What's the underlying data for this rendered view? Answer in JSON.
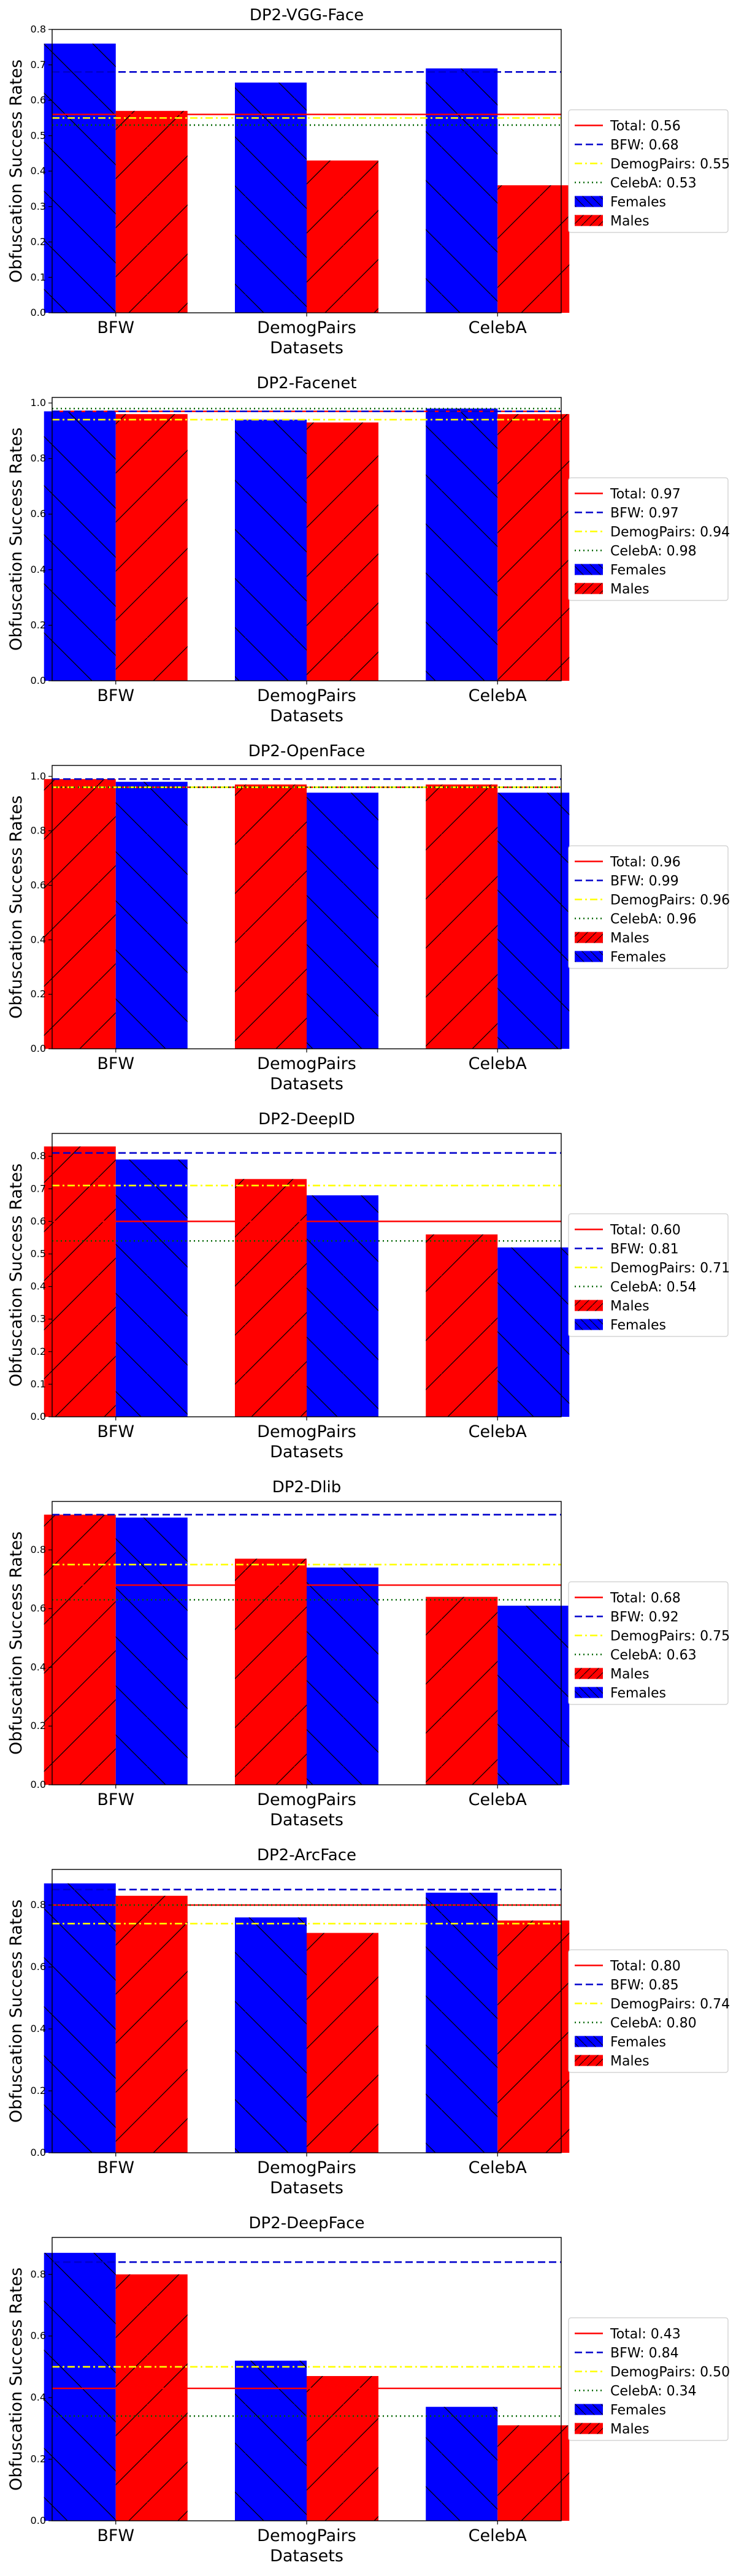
{
  "colors": {
    "Females": "#0000ff",
    "Males": "#ff0000",
    "total": "#ff0000",
    "bfw": "#0000cc",
    "demog": "#ffff00",
    "celeba": "#006400"
  },
  "chart_data": [
    {
      "type": "bar",
      "title": "DP2-VGG-Face",
      "xlabel": "Datasets",
      "ylabel": "Obfuscation Success Rates",
      "categories": [
        "BFW",
        "DemogPairs",
        "CelebA"
      ],
      "yticks": [
        "0.0",
        "0.1",
        "0.2",
        "0.3",
        "0.4",
        "0.5",
        "0.6",
        "0.7",
        "0.8"
      ],
      "ylim": [
        0,
        0.8
      ],
      "series": [
        {
          "name": "Females",
          "values": [
            0.76,
            0.65,
            0.69
          ]
        },
        {
          "name": "Males",
          "values": [
            0.57,
            0.43,
            0.36
          ]
        }
      ],
      "lines": {
        "total": 0.56,
        "bfw": 0.68,
        "demog": 0.55,
        "celeba": 0.53
      },
      "legend": [
        "Total: 0.56",
        "BFW: 0.68",
        "DemogPairs: 0.55",
        "CelebA: 0.53",
        "Females",
        "Males"
      ],
      "legend_position": "right",
      "grid": false
    },
    {
      "type": "bar",
      "title": "DP2-Facenet",
      "xlabel": "Datasets",
      "ylabel": "Obfuscation Success Rates",
      "categories": [
        "BFW",
        "DemogPairs",
        "CelebA"
      ],
      "yticks": [
        "0.0",
        "0.2",
        "0.4",
        "0.6",
        "0.8",
        "1.0"
      ],
      "ylim": [
        0,
        1.02
      ],
      "series": [
        {
          "name": "Females",
          "values": [
            0.97,
            0.94,
            0.98
          ]
        },
        {
          "name": "Males",
          "values": [
            0.96,
            0.93,
            0.96
          ]
        }
      ],
      "lines": {
        "total": 0.97,
        "bfw": 0.97,
        "demog": 0.94,
        "celeba": 0.98
      },
      "legend": [
        "Total: 0.97",
        "BFW: 0.97",
        "DemogPairs: 0.94",
        "CelebA: 0.98",
        "Females",
        "Males"
      ],
      "legend_position": "right",
      "grid": false
    },
    {
      "type": "bar",
      "title": "DP2-OpenFace",
      "xlabel": "Datasets",
      "ylabel": "Obfuscation Success Rates",
      "categories": [
        "BFW",
        "DemogPairs",
        "CelebA"
      ],
      "yticks": [
        "0.0",
        "0.2",
        "0.4",
        "0.6",
        "0.8",
        "1.0"
      ],
      "ylim": [
        0,
        1.04
      ],
      "series": [
        {
          "name": "Males",
          "values": [
            0.99,
            0.97,
            0.97
          ]
        },
        {
          "name": "Females",
          "values": [
            0.98,
            0.94,
            0.94
          ]
        }
      ],
      "lines": {
        "total": 0.96,
        "bfw": 0.99,
        "demog": 0.96,
        "celeba": 0.96
      },
      "legend": [
        "Total: 0.96",
        "BFW: 0.99",
        "DemogPairs: 0.96",
        "CelebA: 0.96",
        "Males",
        "Females"
      ],
      "legend_position": "right",
      "grid": false
    },
    {
      "type": "bar",
      "title": "DP2-DeepID",
      "xlabel": "Datasets",
      "ylabel": "Obfuscation Success Rates",
      "categories": [
        "BFW",
        "DemogPairs",
        "CelebA"
      ],
      "yticks": [
        "0.0",
        "0.1",
        "0.2",
        "0.3",
        "0.4",
        "0.5",
        "0.6",
        "0.7",
        "0.8"
      ],
      "ylim": [
        0,
        0.87
      ],
      "series": [
        {
          "name": "Males",
          "values": [
            0.83,
            0.73,
            0.56
          ]
        },
        {
          "name": "Females",
          "values": [
            0.79,
            0.68,
            0.52
          ]
        }
      ],
      "lines": {
        "total": 0.6,
        "bfw": 0.81,
        "demog": 0.71,
        "celeba": 0.54
      },
      "legend": [
        "Total: 0.60",
        "BFW: 0.81",
        "DemogPairs: 0.71",
        "CelebA: 0.54",
        "Males",
        "Females"
      ],
      "legend_position": "right",
      "grid": false
    },
    {
      "type": "bar",
      "title": "DP2-Dlib",
      "xlabel": "Datasets",
      "ylabel": "Obfuscation Success Rates",
      "categories": [
        "BFW",
        "DemogPairs",
        "CelebA"
      ],
      "yticks": [
        "0.0",
        "0.2",
        "0.4",
        "0.6",
        "0.8"
      ],
      "ylim": [
        0,
        0.965
      ],
      "series": [
        {
          "name": "Males",
          "values": [
            0.92,
            0.77,
            0.64
          ]
        },
        {
          "name": "Females",
          "values": [
            0.91,
            0.74,
            0.61
          ]
        }
      ],
      "lines": {
        "total": 0.68,
        "bfw": 0.92,
        "demog": 0.75,
        "celeba": 0.63
      },
      "legend": [
        "Total: 0.68",
        "BFW: 0.92",
        "DemogPairs: 0.75",
        "CelebA: 0.63",
        "Males",
        "Females"
      ],
      "legend_position": "right",
      "grid": false
    },
    {
      "type": "bar",
      "title": "DP2-ArcFace",
      "xlabel": "Datasets",
      "ylabel": "Obfuscation Success Rates",
      "categories": [
        "BFW",
        "DemogPairs",
        "CelebA"
      ],
      "yticks": [
        "0.0",
        "0.2",
        "0.4",
        "0.6",
        "0.8"
      ],
      "ylim": [
        0,
        0.915
      ],
      "series": [
        {
          "name": "Females",
          "values": [
            0.87,
            0.76,
            0.84
          ]
        },
        {
          "name": "Males",
          "values": [
            0.83,
            0.71,
            0.75
          ]
        }
      ],
      "lines": {
        "total": 0.8,
        "bfw": 0.85,
        "demog": 0.74,
        "celeba": 0.8
      },
      "legend": [
        "Total: 0.80",
        "BFW: 0.85",
        "DemogPairs: 0.74",
        "CelebA: 0.80",
        "Females",
        "Males"
      ],
      "legend_position": "right",
      "grid": false
    },
    {
      "type": "bar",
      "title": "DP2-DeepFace",
      "xlabel": "Datasets",
      "ylabel": "Obfuscation Success Rates",
      "categories": [
        "BFW",
        "DemogPairs",
        "CelebA"
      ],
      "yticks": [
        "0.0",
        "0.2",
        "0.4",
        "0.6",
        "0.8"
      ],
      "ylim": [
        0,
        0.92
      ],
      "series": [
        {
          "name": "Females",
          "values": [
            0.87,
            0.52,
            0.37
          ]
        },
        {
          "name": "Males",
          "values": [
            0.8,
            0.47,
            0.31
          ]
        }
      ],
      "lines": {
        "total": 0.43,
        "bfw": 0.84,
        "demog": 0.5,
        "celeba": 0.34
      },
      "legend": [
        "Total: 0.43",
        "BFW: 0.84",
        "DemogPairs: 0.50",
        "CelebA: 0.34",
        "Females",
        "Males"
      ],
      "legend_position": "right",
      "grid": false
    }
  ]
}
